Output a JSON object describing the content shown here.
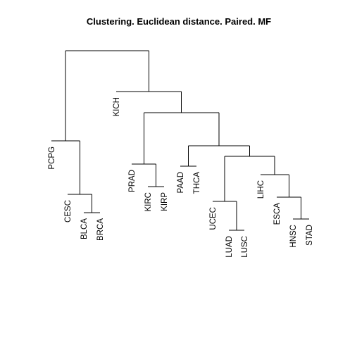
{
  "title": "Clustering. Euclidean  distance. Paired. MF",
  "leaves": [
    "PCPG",
    "CESC",
    "BLCA",
    "BRCA",
    "KICH",
    "PRAD",
    "KIRC",
    "KIRP",
    "PAAD",
    "THCA",
    "UCEC",
    "LUAD",
    "LUSC",
    "LIHC",
    "ESCA",
    "HNSC",
    "STAD"
  ],
  "line_color": "#000000",
  "background": "#ffffff"
}
